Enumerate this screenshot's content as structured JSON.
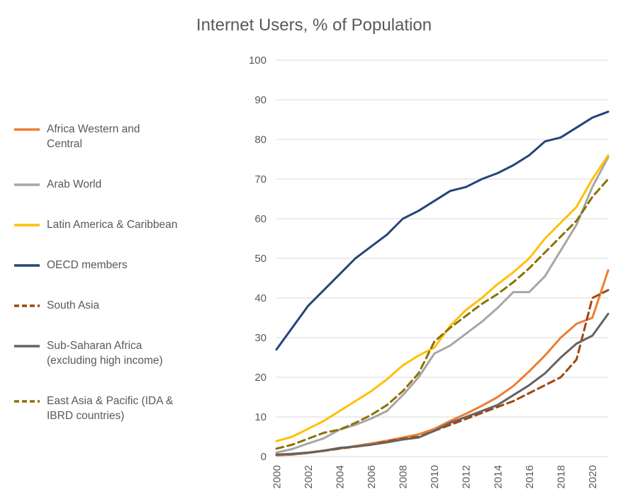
{
  "chart_data": {
    "type": "line",
    "title": "Internet Users, % of Population",
    "x": [
      2000,
      2001,
      2002,
      2003,
      2004,
      2005,
      2006,
      2007,
      2008,
      2009,
      2010,
      2011,
      2012,
      2013,
      2014,
      2015,
      2016,
      2017,
      2018,
      2019,
      2020,
      2021
    ],
    "x_tick_years": [
      2000,
      2002,
      2004,
      2006,
      2008,
      2010,
      2012,
      2014,
      2016,
      2018,
      2020
    ],
    "y_ticks": [
      0,
      10,
      20,
      30,
      40,
      50,
      60,
      70,
      80,
      90,
      100
    ],
    "ylim": [
      0,
      100
    ],
    "grid": "horizontal",
    "gridline_color": "#D9D9D9",
    "text_color": "#595959",
    "legend_position": "left",
    "series": [
      {
        "name": "Africa Western and\nCentral",
        "key": "africa-western-and-central",
        "color": "#ED7D31",
        "style": "solid",
        "values": [
          0.3,
          0.5,
          0.9,
          1.4,
          2.0,
          2.7,
          3.3,
          4.0,
          4.8,
          5.6,
          7.0,
          9.0,
          10.8,
          12.8,
          15.0,
          17.8,
          21.5,
          25.5,
          30.0,
          33.5,
          35.0,
          47.0
        ]
      },
      {
        "name": "Arab World",
        "key": "arab-world",
        "color": "#A6A6A6",
        "style": "solid",
        "values": [
          1.0,
          1.9,
          3.3,
          4.6,
          6.8,
          8.0,
          9.6,
          11.5,
          15.5,
          20.0,
          26.0,
          28.0,
          31.0,
          34.0,
          37.5,
          41.5,
          41.5,
          45.5,
          52.0,
          58.5,
          68.0,
          75.5
        ]
      },
      {
        "name": "Latin America & Caribbean",
        "key": "latin-america-caribbean",
        "color": "#FFC000",
        "style": "solid",
        "values": [
          3.9,
          5.0,
          7.0,
          9.0,
          11.5,
          14.0,
          16.5,
          19.5,
          23.0,
          25.5,
          27.5,
          33.0,
          37.0,
          40.0,
          43.5,
          46.5,
          50.0,
          55.0,
          59.0,
          63.0,
          70.0,
          76.0
        ]
      },
      {
        "name": "OECD members",
        "key": "oecd-members",
        "color": "#264478",
        "style": "solid",
        "values": [
          27.0,
          32.5,
          38.0,
          42.0,
          46.0,
          50.0,
          53.0,
          56.0,
          60.0,
          62.0,
          64.5,
          67.0,
          68.0,
          70.0,
          71.5,
          73.5,
          76.0,
          79.5,
          80.5,
          83.0,
          85.5,
          87.0
        ]
      },
      {
        "name": "South Asia",
        "key": "south-asia",
        "color": "#9E480E",
        "style": "dashed",
        "values": [
          0.5,
          0.6,
          1.0,
          1.5,
          2.0,
          2.5,
          3.0,
          3.8,
          4.5,
          5.0,
          6.5,
          8.0,
          9.5,
          11.0,
          12.5,
          14.0,
          16.0,
          18.0,
          20.0,
          24.5,
          40.0,
          42.0
        ]
      },
      {
        "name": "Sub-Saharan Africa\n(excluding high income)",
        "key": "sub-saharan-africa",
        "color": "#636363",
        "style": "solid",
        "values": [
          0.5,
          0.7,
          1.0,
          1.5,
          2.2,
          2.5,
          3.0,
          3.6,
          4.3,
          4.8,
          6.5,
          8.5,
          10.0,
          11.5,
          13.0,
          15.5,
          18.0,
          21.0,
          25.0,
          28.5,
          30.5,
          36.0
        ]
      },
      {
        "name": "East Asia & Pacific (IDA &\nIBRD countries)",
        "key": "east-asia-pacific",
        "color": "#8A7100",
        "style": "dashed",
        "values": [
          2.0,
          3.0,
          4.5,
          6.0,
          6.8,
          8.5,
          10.5,
          13.0,
          16.5,
          21.0,
          29.0,
          32.5,
          35.5,
          38.5,
          41.0,
          44.0,
          47.5,
          51.5,
          55.5,
          59.5,
          65.5,
          70.0
        ]
      }
    ]
  }
}
